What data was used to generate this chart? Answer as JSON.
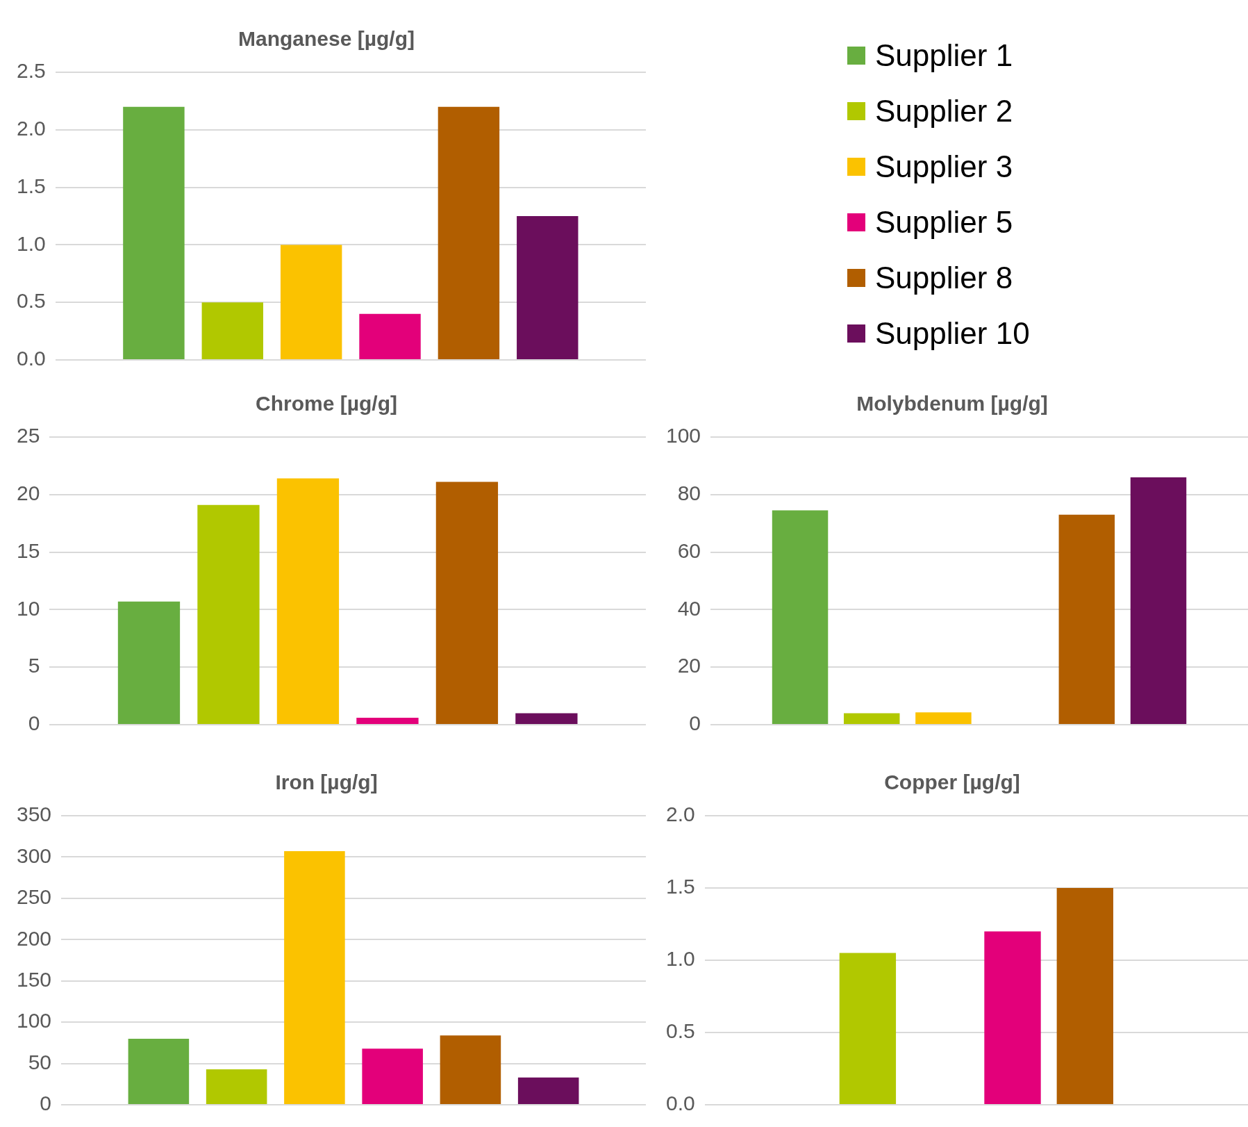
{
  "chart_data": [
    {
      "type": "bar",
      "title": "Manganese [µg/g]",
      "categories": [
        null
      ],
      "ylim": [
        0,
        2.5
      ],
      "yticks": [
        {
          "value": 0,
          "label": "0.0"
        },
        {
          "value": 0.5,
          "label": "0.5"
        },
        {
          "value": 1,
          "label": "1.0"
        },
        {
          "value": 1.5,
          "label": "1.5"
        },
        {
          "value": 2,
          "label": "2.0"
        },
        {
          "value": 2.5,
          "label": "2.5"
        }
      ],
      "grid": "y",
      "tick_labels": "y",
      "legend": "right",
      "series": [
        {
          "name": "Supplier 1",
          "color": "#68ae40",
          "values": [
            2.2
          ]
        },
        {
          "name": "Supplier 2",
          "color": "#b1c800",
          "values": [
            0.5
          ]
        },
        {
          "name": "Supplier 3",
          "color": "#fbc200",
          "values": [
            1.0
          ]
        },
        {
          "name": "Supplier 5",
          "color": "#e3007a",
          "values": [
            0.4
          ]
        },
        {
          "name": "Supplier 8",
          "color": "#b15e00",
          "values": [
            2.2
          ]
        },
        {
          "name": "Supplier 10",
          "color": "#6b0e5c",
          "values": [
            1.25
          ]
        }
      ]
    },
    {
      "type": "bar",
      "title": "Chrome [µg/g]",
      "categories": [
        null
      ],
      "ylim": [
        0,
        25
      ],
      "yticks": [
        0,
        5,
        10,
        15,
        20,
        25
      ],
      "grid": "y",
      "tick_labels": "y",
      "series": [
        {
          "color": "#68ae40",
          "values": [
            10.7
          ]
        },
        {
          "color": "#b1c800",
          "values": [
            19.1
          ]
        },
        {
          "color": "#fbc200",
          "values": [
            21.4
          ]
        },
        {
          "color": "#e3007a",
          "values": [
            0.6
          ]
        },
        {
          "color": "#b15e00",
          "values": [
            21.1
          ]
        },
        {
          "color": "#6b0e5c",
          "values": [
            1.0
          ]
        }
      ]
    },
    {
      "type": "bar",
      "title": "Molybdenum [µg/g]",
      "categories": [
        null
      ],
      "ylim": [
        0,
        100
      ],
      "yticks": [
        0,
        20,
        40,
        60,
        80,
        100
      ],
      "grid": "y",
      "tick_labels": "y",
      "series": [
        {
          "color": "#68ae40",
          "values": [
            74.5
          ]
        },
        {
          "color": "#b1c800",
          "values": [
            4.0
          ]
        },
        {
          "color": "#fbc200",
          "values": [
            4.3
          ]
        },
        {
          "color": "#e3007a",
          "values": [
            null
          ]
        },
        {
          "color": "#b15e00",
          "values": [
            73
          ]
        },
        {
          "color": "#6b0e5c",
          "values": [
            86
          ]
        }
      ]
    },
    {
      "type": "bar",
      "title": "Iron [µg/g]",
      "categories": [
        null
      ],
      "ylim": [
        0,
        350
      ],
      "yticks": [
        0,
        50,
        100,
        150,
        200,
        250,
        300,
        350
      ],
      "grid": "y",
      "tick_labels": "y",
      "series": [
        {
          "color": "#68ae40",
          "values": [
            80
          ]
        },
        {
          "color": "#b1c800",
          "values": [
            43
          ]
        },
        {
          "color": "#fbc200",
          "values": [
            307
          ]
        },
        {
          "color": "#e3007a",
          "values": [
            68
          ]
        },
        {
          "color": "#b15e00",
          "values": [
            84
          ]
        },
        {
          "color": "#6b0e5c",
          "values": [
            33
          ]
        }
      ]
    },
    {
      "type": "bar",
      "title": "Copper [µg/g]",
      "categories": [
        null
      ],
      "ylim": [
        0,
        2
      ],
      "yticks": [
        {
          "value": 0,
          "label": "0.0"
        },
        {
          "value": 0.5,
          "label": "0.5"
        },
        {
          "value": 1,
          "label": "1.0"
        },
        {
          "value": 1.5,
          "label": "1.5"
        },
        {
          "value": 2,
          "label": "2.0"
        }
      ],
      "grid": "y",
      "tick_labels": "y",
      "series": [
        {
          "color": "#68ae40",
          "values": [
            null
          ]
        },
        {
          "color": "#b1c800",
          "values": [
            1.05
          ]
        },
        {
          "color": "#fbc200",
          "values": [
            null
          ]
        },
        {
          "color": "#e3007a",
          "values": [
            1.2
          ]
        },
        {
          "color": "#b15e00",
          "values": [
            1.5
          ]
        },
        {
          "color": "#6b0e5c",
          "values": [
            null
          ]
        }
      ]
    }
  ]
}
